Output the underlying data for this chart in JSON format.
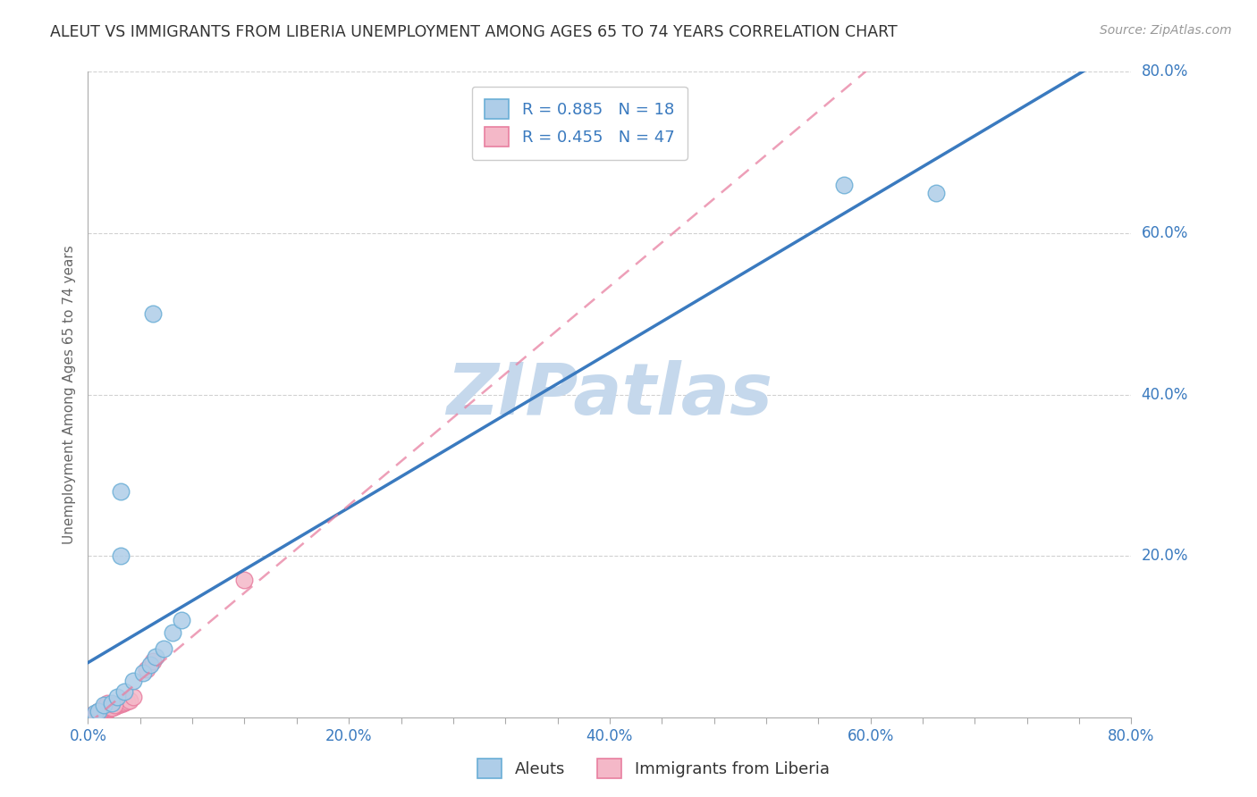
{
  "title": "ALEUT VS IMMIGRANTS FROM LIBERIA UNEMPLOYMENT AMONG AGES 65 TO 74 YEARS CORRELATION CHART",
  "source": "Source: ZipAtlas.com",
  "ylabel": "Unemployment Among Ages 65 to 74 years",
  "xlim": [
    0.0,
    0.8
  ],
  "ylim": [
    0.0,
    0.8
  ],
  "xtick_labels": [
    "0.0%",
    "",
    "",
    "",
    "",
    "20.0%",
    "",
    "",
    "",
    "",
    "40.0%",
    "",
    "",
    "",
    "",
    "60.0%",
    "",
    "",
    "",
    "",
    "80.0%"
  ],
  "xtick_values": [
    0.0,
    0.04,
    0.08,
    0.12,
    0.16,
    0.2,
    0.24,
    0.28,
    0.32,
    0.36,
    0.4,
    0.44,
    0.48,
    0.52,
    0.56,
    0.6,
    0.64,
    0.68,
    0.72,
    0.76,
    0.8
  ],
  "ytick_labels": [
    "20.0%",
    "40.0%",
    "60.0%",
    "80.0%"
  ],
  "ytick_values": [
    0.2,
    0.4,
    0.6,
    0.8
  ],
  "aleuts_color": "#aecde8",
  "liberia_color": "#f4b8c8",
  "aleuts_edge_color": "#6aaed6",
  "liberia_edge_color": "#e87fa0",
  "regression_aleuts_color": "#3a7abf",
  "regression_liberia_color": "#e87fa0",
  "R_aleuts": 0.885,
  "N_aleuts": 18,
  "R_liberia": 0.455,
  "N_liberia": 47,
  "legend_label_aleuts": "Aleuts",
  "legend_label_liberia": "Immigrants from Liberia",
  "aleuts_x": [
    0.005,
    0.008,
    0.012,
    0.018,
    0.022,
    0.028,
    0.035,
    0.042,
    0.048,
    0.052,
    0.058,
    0.065,
    0.072,
    0.05,
    0.025,
    0.58,
    0.65,
    0.025
  ],
  "aleuts_y": [
    0.005,
    0.008,
    0.015,
    0.018,
    0.025,
    0.032,
    0.045,
    0.055,
    0.065,
    0.075,
    0.085,
    0.105,
    0.12,
    0.5,
    0.2,
    0.66,
    0.65,
    0.28
  ],
  "liberia_x": [
    0.0,
    0.001,
    0.002,
    0.003,
    0.004,
    0.005,
    0.005,
    0.006,
    0.007,
    0.007,
    0.008,
    0.008,
    0.009,
    0.01,
    0.01,
    0.011,
    0.012,
    0.013,
    0.014,
    0.015,
    0.015,
    0.016,
    0.018,
    0.019,
    0.02,
    0.021,
    0.022,
    0.023,
    0.025,
    0.025,
    0.027,
    0.028,
    0.03,
    0.032,
    0.035,
    0.006,
    0.008,
    0.009,
    0.01,
    0.012,
    0.014,
    0.015,
    0.018,
    0.02,
    0.045,
    0.05,
    0.12
  ],
  "liberia_y": [
    0.0,
    0.001,
    0.002,
    0.002,
    0.003,
    0.003,
    0.004,
    0.004,
    0.005,
    0.006,
    0.006,
    0.007,
    0.005,
    0.007,
    0.006,
    0.008,
    0.008,
    0.009,
    0.01,
    0.009,
    0.01,
    0.011,
    0.012,
    0.013,
    0.013,
    0.014,
    0.015,
    0.015,
    0.016,
    0.017,
    0.018,
    0.019,
    0.02,
    0.021,
    0.025,
    0.002,
    0.004,
    0.006,
    0.009,
    0.012,
    0.015,
    0.018,
    0.012,
    0.015,
    0.06,
    0.07,
    0.17
  ],
  "background_color": "#ffffff",
  "grid_color": "#cccccc",
  "title_color": "#333333",
  "axis_label_color": "#666666",
  "tick_label_color": "#3a7abf",
  "watermark_color": "#c5d8ec",
  "watermark_text": "ZIPatlas"
}
